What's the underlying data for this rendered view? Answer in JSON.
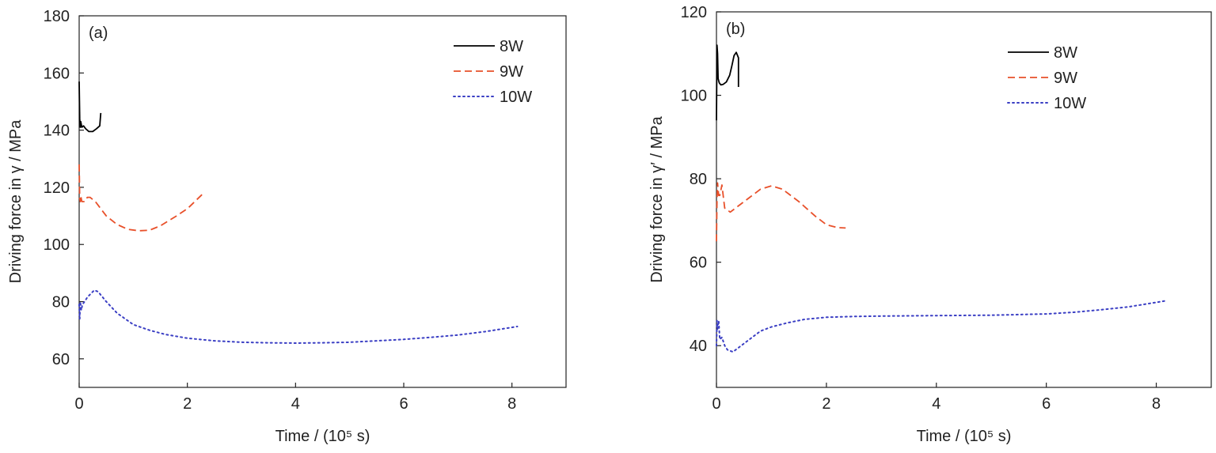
{
  "chart_data": [
    {
      "type": "line",
      "panel_label": "(a)",
      "ylabel": "Driving force in γ / MPa",
      "xlabel": "Time / (10⁵ s)",
      "xlim": [
        0,
        9
      ],
      "ylim": [
        50,
        180
      ],
      "xticks": [
        "0",
        "2",
        "4",
        "6",
        "8"
      ],
      "yticks": [
        "60",
        "80",
        "100",
        "120",
        "140",
        "160",
        "180"
      ],
      "legend_position": "top-right",
      "series": [
        {
          "name": "8W",
          "color": "#000000",
          "style": "solid",
          "x": [
            0.0,
            0.01,
            0.02,
            0.03,
            0.05,
            0.08,
            0.12,
            0.18,
            0.25,
            0.32,
            0.38,
            0.4
          ],
          "y": [
            157,
            144,
            141,
            143,
            141,
            141.5,
            140.5,
            139.5,
            139.5,
            140.5,
            141.5,
            146
          ]
        },
        {
          "name": "9W",
          "color": "#e8502a",
          "style": "dashed",
          "x": [
            0.0,
            0.01,
            0.02,
            0.03,
            0.05,
            0.1,
            0.15,
            0.2,
            0.3,
            0.5,
            0.7,
            0.9,
            1.1,
            1.3,
            1.5,
            1.8,
            2.0,
            2.3
          ],
          "y": [
            128,
            116,
            115,
            117,
            115,
            115,
            116.5,
            116.5,
            115,
            110,
            107,
            105.3,
            104.8,
            105,
            106.5,
            110,
            112.5,
            118
          ]
        },
        {
          "name": "10W",
          "color": "#3b3fc4",
          "style": "dotted",
          "x": [
            0.0,
            0.01,
            0.02,
            0.04,
            0.06,
            0.1,
            0.15,
            0.2,
            0.28,
            0.35,
            0.5,
            0.7,
            1.0,
            1.3,
            1.6,
            2.0,
            2.5,
            3.0,
            3.5,
            4.0,
            4.5,
            5.0,
            5.5,
            6.0,
            6.5,
            7.0,
            7.5,
            8.1
          ],
          "y": [
            79,
            74,
            80,
            77,
            79,
            80,
            81.5,
            82.5,
            84,
            83.5,
            80,
            76,
            72,
            70,
            68.5,
            67.2,
            66.3,
            65.8,
            65.6,
            65.5,
            65.6,
            65.8,
            66.3,
            66.8,
            67.5,
            68.3,
            69.5,
            71.3
          ]
        }
      ]
    },
    {
      "type": "line",
      "panel_label": "(b)",
      "ylabel": "Driving force in γ′ / MPa",
      "xlabel": "Time / (10⁵ s)",
      "xlim": [
        0,
        9
      ],
      "ylim": [
        30,
        120
      ],
      "xticks": [
        "0",
        "2",
        "4",
        "6",
        "8"
      ],
      "yticks": [
        "40",
        "60",
        "80",
        "100",
        "120"
      ],
      "legend_position": "top-right",
      "series": [
        {
          "name": "8W",
          "color": "#000000",
          "style": "solid",
          "x": [
            0.0,
            0.01,
            0.02,
            0.03,
            0.05,
            0.08,
            0.12,
            0.18,
            0.24,
            0.28,
            0.32,
            0.36,
            0.4,
            0.4
          ],
          "y": [
            94,
            112,
            110,
            104,
            103,
            102.5,
            102.6,
            103.2,
            104.8,
            107,
            109.5,
            110.3,
            109,
            102
          ]
        },
        {
          "name": "9W",
          "color": "#e8502a",
          "style": "dashed",
          "x": [
            0.0,
            0.01,
            0.02,
            0.04,
            0.06,
            0.1,
            0.15,
            0.25,
            0.4,
            0.6,
            0.8,
            1.0,
            1.2,
            1.5,
            1.8,
            2.0,
            2.2,
            2.35
          ],
          "y": [
            65,
            75,
            79,
            76,
            76,
            78.5,
            73,
            72,
            73.5,
            75.5,
            77.5,
            78.3,
            77.5,
            74.5,
            71,
            69,
            68.3,
            68.2
          ]
        },
        {
          "name": "10W",
          "color": "#3b3fc4",
          "style": "dotted",
          "x": [
            0.0,
            0.01,
            0.02,
            0.04,
            0.06,
            0.1,
            0.15,
            0.2,
            0.3,
            0.45,
            0.6,
            0.8,
            1.0,
            1.3,
            1.6,
            2.0,
            2.5,
            3.0,
            4.0,
            5.0,
            6.0,
            6.5,
            7.0,
            7.5,
            8.2
          ],
          "y": [
            40,
            46,
            44,
            46,
            41.5,
            42,
            40,
            39,
            38.5,
            40,
            41.5,
            43.5,
            44.5,
            45.5,
            46.3,
            46.8,
            47,
            47.1,
            47.2,
            47.3,
            47.6,
            48,
            48.6,
            49.3,
            50.8
          ]
        }
      ]
    }
  ]
}
